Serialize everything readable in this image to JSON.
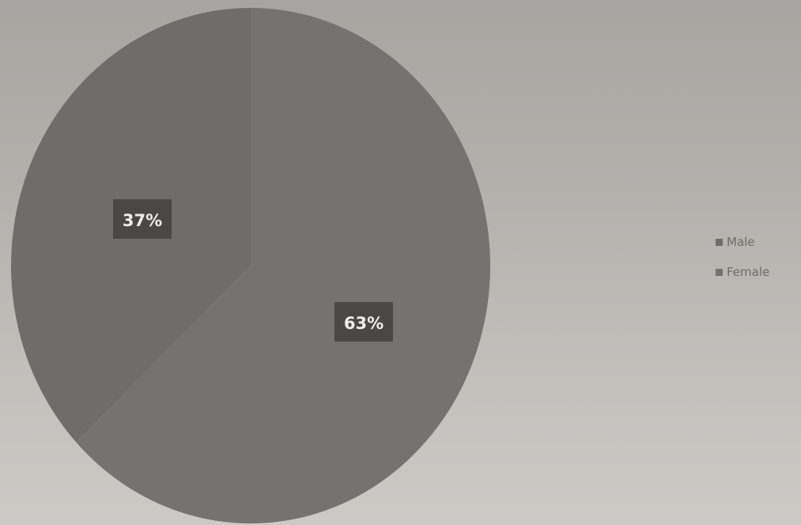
{
  "chart_data": {
    "type": "pie",
    "title": "",
    "categories": [
      "Male",
      "Female"
    ],
    "values": [
      37,
      63
    ],
    "data_labels": [
      "37%",
      "63%"
    ],
    "colors": [
      "#6f6c69",
      "#757270"
    ],
    "legend_position": "right"
  },
  "colors": {
    "background": "#bdbab6",
    "label_box": "#4a4846",
    "label_text": "#f0eeec",
    "legend_text": "#6e6b67"
  }
}
